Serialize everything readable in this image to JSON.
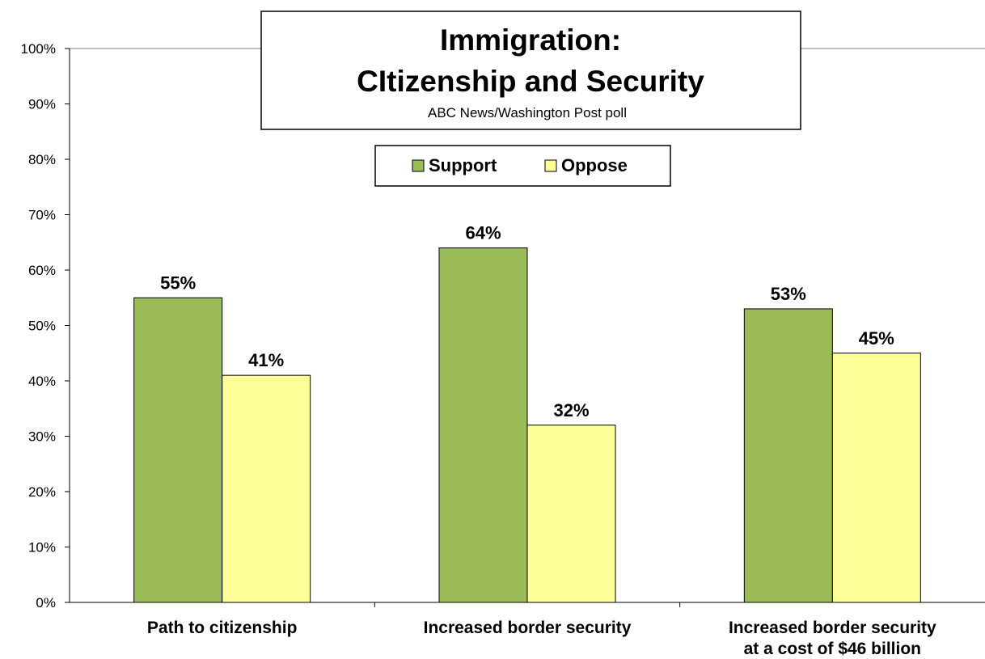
{
  "chart_data": {
    "type": "bar",
    "title": "Immigration:",
    "title_line2": "CItizenship and Security",
    "subtitle": "ABC News/Washington  Post poll",
    "categories": [
      [
        "Path to citizenship"
      ],
      [
        "Increased border security"
      ],
      [
        "Increased border security",
        "at a cost of $46 billion"
      ]
    ],
    "series": [
      {
        "name": "Support",
        "values": [
          55,
          64,
          53
        ],
        "labels": [
          "55%",
          "64%",
          "53%"
        ],
        "color": "#9BBB59"
      },
      {
        "name": "Oppose",
        "values": [
          41,
          32,
          45
        ],
        "labels": [
          "41%",
          "32%",
          "45%"
        ],
        "color": "#FFFF99"
      }
    ],
    "ylim": [
      0,
      100
    ],
    "yticks": [
      0,
      10,
      20,
      30,
      40,
      50,
      60,
      70,
      80,
      90,
      100
    ],
    "ytick_labels": [
      "0%",
      "10%",
      "20%",
      "30%",
      "40%",
      "50%",
      "60%",
      "70%",
      "80%",
      "90%",
      "100%"
    ],
    "grid": "top line only",
    "legend_position": "top-center"
  }
}
